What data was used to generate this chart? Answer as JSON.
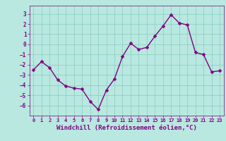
{
  "x_data": [
    0,
    1,
    2,
    3,
    4,
    5,
    6,
    7,
    8,
    9,
    10,
    11,
    12,
    13,
    14,
    15,
    16,
    17,
    18,
    19,
    20,
    21,
    22,
    23
  ],
  "y_data": [
    -2.5,
    -1.7,
    -2.3,
    -3.5,
    -4.1,
    -4.3,
    -4.4,
    -5.6,
    -6.4,
    -4.5,
    -3.4,
    -1.2,
    0.1,
    -0.5,
    -0.3,
    0.8,
    1.8,
    2.9,
    2.1,
    1.9,
    -0.8,
    -1.0,
    -2.7,
    -2.6
  ],
  "line_color": "#800080",
  "marker_color": "#800080",
  "bg_color": "#b8e8e0",
  "grid_color": "#88ccbb",
  "xlabel": "Windchill (Refroidissement éolien,°C)",
  "xlim": [
    -0.5,
    23.5
  ],
  "ylim": [
    -7.0,
    3.8
  ],
  "yticks": [
    -6,
    -5,
    -4,
    -3,
    -2,
    -1,
    0,
    1,
    2,
    3
  ],
  "xticks": [
    0,
    1,
    2,
    3,
    4,
    5,
    6,
    7,
    8,
    9,
    10,
    11,
    12,
    13,
    14,
    15,
    16,
    17,
    18,
    19,
    20,
    21,
    22,
    23
  ],
  "tick_color": "#800080",
  "xlabel_color": "#800080",
  "line_width": 1.0,
  "marker_size": 2.5,
  "tick_fontsize": 5.5,
  "xlabel_fontsize": 6.5
}
